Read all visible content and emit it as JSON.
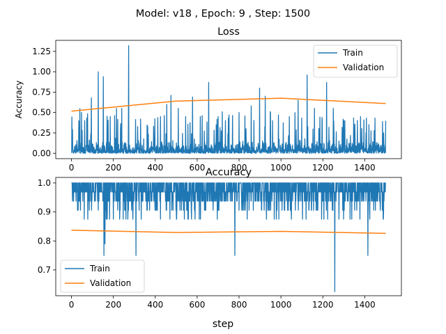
{
  "figure": {
    "suptitle": "Model: v18 , Epoch: 9 , Step: 1500"
  },
  "colors": {
    "train": "#1f77b4",
    "validation": "#ff7f0e",
    "axes": "#000000",
    "legend_border": "#cccccc"
  },
  "chart_data": [
    {
      "type": "line",
      "title": "Loss",
      "xlabel": "",
      "ylabel": "Accuracy",
      "xlim": [
        -75,
        1575
      ],
      "ylim": [
        -0.066,
        1.385
      ],
      "xticks": [
        0,
        200,
        400,
        600,
        800,
        1000,
        1200,
        1400
      ],
      "yticks": [
        0.0,
        0.25,
        0.5,
        0.75,
        1.0,
        1.25
      ],
      "ytick_labels": [
        "0.00",
        "0.25",
        "0.50",
        "0.75",
        "1.00",
        "1.25"
      ],
      "grid": false,
      "legend": "upper-right",
      "series": [
        {
          "name": "Train",
          "color": "#1f77b4",
          "generated": true,
          "step_count": 1501,
          "base_min": 0.0,
          "base_max": 0.16,
          "seed": 7,
          "spike_rate": 0.1,
          "spike_max": 0.45,
          "peaks": [
            [
              5,
              0.29
            ],
            [
              48,
              0.5
            ],
            [
              63,
              0.4
            ],
            [
              95,
              0.68
            ],
            [
              128,
              1.0
            ],
            [
              152,
              0.94
            ],
            [
              185,
              0.45
            ],
            [
              215,
              0.55
            ],
            [
              240,
              0.55
            ],
            [
              273,
              1.32
            ],
            [
              330,
              0.42
            ],
            [
              392,
              0.33
            ],
            [
              425,
              0.45
            ],
            [
              455,
              0.6
            ],
            [
              475,
              0.71
            ],
            [
              510,
              0.55
            ],
            [
              545,
              0.45
            ],
            [
              578,
              0.69
            ],
            [
              615,
              0.45
            ],
            [
              655,
              0.87
            ],
            [
              700,
              0.45
            ],
            [
              735,
              0.4
            ],
            [
              800,
              0.5
            ],
            [
              858,
              0.58
            ],
            [
              898,
              0.8
            ],
            [
              925,
              0.7
            ],
            [
              960,
              0.4
            ],
            [
              1040,
              0.45
            ],
            [
              1082,
              0.65
            ],
            [
              1125,
              0.96
            ],
            [
              1160,
              0.55
            ],
            [
              1218,
              0.87
            ],
            [
              1250,
              0.55
            ],
            [
              1300,
              0.4
            ],
            [
              1380,
              0.45
            ],
            [
              1445,
              0.28
            ],
            [
              1490,
              0.25
            ]
          ]
        },
        {
          "name": "Validation",
          "color": "#ff7f0e",
          "x": [
            0,
            500,
            1000,
            1500
          ],
          "y": [
            0.517,
            0.64,
            0.675,
            0.61
          ]
        }
      ]
    },
    {
      "type": "line",
      "title": "Accuracy",
      "xlabel": "step",
      "ylabel": "",
      "xlim": [
        -75,
        1575
      ],
      "ylim": [
        0.611,
        1.019
      ],
      "xticks": [
        0,
        200,
        400,
        600,
        800,
        1000,
        1200,
        1400
      ],
      "yticks": [
        0.7,
        0.8,
        0.9,
        1.0
      ],
      "ytick_labels": [
        "0.7",
        "0.8",
        "0.9",
        "1.0"
      ],
      "grid": false,
      "legend": "lower-left",
      "series": [
        {
          "name": "Train",
          "color": "#1f77b4",
          "generated": true,
          "step_count": 1501,
          "seed": 11,
          "levels": [
            1.0,
            0.969,
            0.9375,
            0.906,
            0.875
          ],
          "level_weights": [
            0.45,
            0.3,
            0.17,
            0.06,
            0.02
          ],
          "dips": [
            [
              155,
              0.75
            ],
            [
              160,
              0.79
            ],
            [
              308,
              0.75
            ],
            [
              780,
              0.75
            ],
            [
              1257,
              0.625
            ],
            [
              1415,
              0.75
            ],
            [
              470,
              0.875
            ],
            [
              590,
              0.875
            ],
            [
              1120,
              0.875
            ],
            [
              700,
              0.906
            ],
            [
              1490,
              0.906
            ]
          ]
        },
        {
          "name": "Validation",
          "color": "#ff7f0e",
          "x": [
            0,
            500,
            1000,
            1500
          ],
          "y": [
            0.837,
            0.829,
            0.833,
            0.826
          ]
        }
      ]
    }
  ]
}
